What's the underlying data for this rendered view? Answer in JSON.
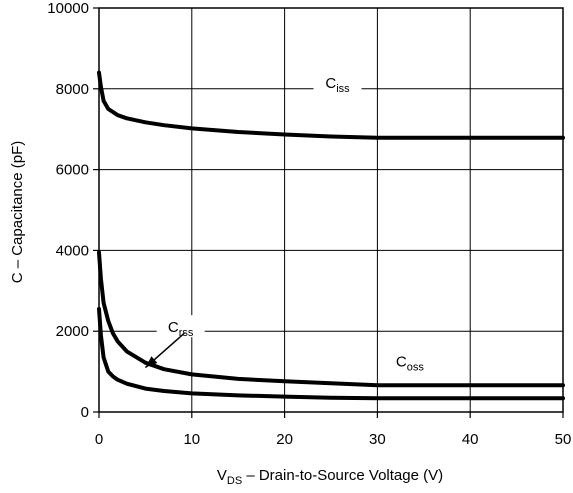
{
  "chart_data": {
    "type": "line",
    "xlabel": {
      "main": "V",
      "sub": "DS",
      "rest": " – Drain-to-Source Voltage (V)"
    },
    "ylabel": "C – Capacitance (pF)",
    "xlim": [
      0,
      50
    ],
    "ylim": [
      0,
      10000
    ],
    "x_ticks": [
      0,
      10,
      20,
      30,
      40,
      50
    ],
    "y_ticks": [
      0,
      2000,
      4000,
      6000,
      8000,
      10000
    ],
    "x_tick_labels": [
      "0",
      "10",
      "20",
      "30",
      "40",
      "50"
    ],
    "y_tick_labels": [
      "0",
      "2000",
      "4000",
      "6000",
      "8000",
      "10000"
    ],
    "grid": true,
    "series": [
      {
        "name": {
          "main": "C",
          "sub": "iss"
        },
        "x": [
          0,
          0.2,
          0.5,
          1,
          2,
          3,
          5,
          7,
          10,
          15,
          20,
          25,
          30,
          35,
          40,
          45,
          50
        ],
        "y": [
          8400,
          8050,
          7700,
          7500,
          7350,
          7270,
          7170,
          7100,
          7020,
          6930,
          6870,
          6820,
          6790,
          6790,
          6790,
          6790,
          6790
        ]
      },
      {
        "name": {
          "main": "C",
          "sub": "oss"
        },
        "x": [
          0,
          0.2,
          0.5,
          1,
          1.5,
          2,
          3,
          5,
          7,
          10,
          15,
          20,
          25,
          30,
          35,
          40,
          45,
          50
        ],
        "y": [
          3950,
          3300,
          2700,
          2250,
          1950,
          1750,
          1500,
          1220,
          1060,
          930,
          820,
          760,
          710,
          660,
          660,
          660,
          660,
          660
        ]
      },
      {
        "name": {
          "main": "C",
          "sub": "rss"
        },
        "x": [
          0,
          0.2,
          0.5,
          1,
          1.5,
          2,
          3,
          5,
          7,
          10,
          15,
          20,
          25,
          30,
          35,
          40,
          45,
          50
        ],
        "y": [
          2550,
          1900,
          1350,
          1000,
          880,
          800,
          700,
          580,
          520,
          460,
          410,
          380,
          355,
          340,
          340,
          340,
          340,
          340
        ]
      }
    ]
  }
}
